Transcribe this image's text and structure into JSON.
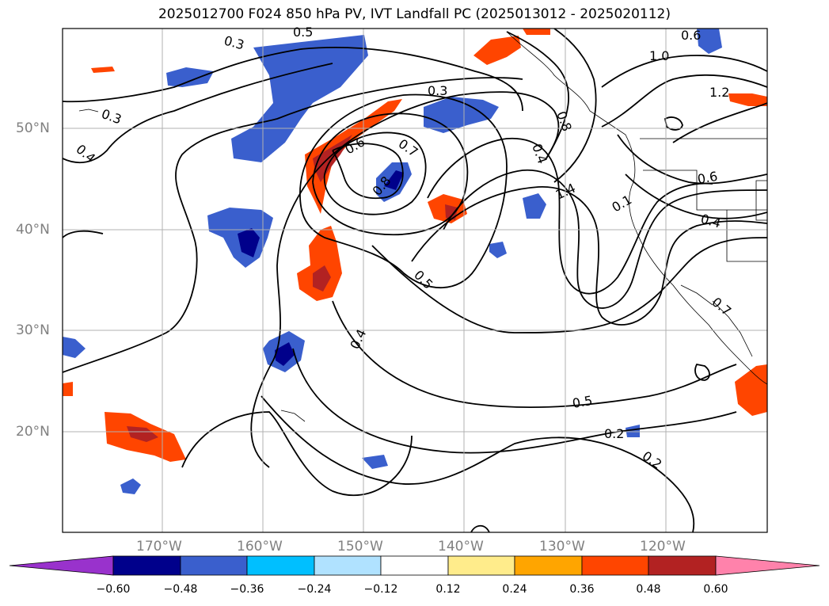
{
  "title": "2025012700 F024 850 hPa PV, IVT Landfall PC (2025013012 - 2025020112)",
  "lat_labels": [
    "50°N",
    "40°N",
    "30°N",
    "20°N"
  ],
  "lon_labels": [
    "170°W",
    "160°W",
    "150°W",
    "140°W",
    "130°W",
    "120°W"
  ],
  "colorbar": {
    "ticks": [
      "−0.60",
      "−0.48",
      "−0.36",
      "−0.24",
      "−0.12",
      "0.12",
      "0.24",
      "0.36",
      "0.48",
      "0.60"
    ],
    "colors": [
      "#9932cc",
      "#00008b",
      "#3a5fcd",
      "#00bfff",
      "#b0e2ff",
      "#ffffff",
      "#ffec8b",
      "#ffa500",
      "#ff4500",
      "#b22222",
      "#ff82ab"
    ]
  },
  "contour_labels": [
    "0.3",
    "0.5",
    "0.6",
    "0.3",
    "1.0",
    "0.3",
    "1.2",
    "0.4",
    "0.8",
    "0.6",
    "0.7",
    "0.4",
    "1.4",
    "0.6",
    "0.1",
    "0.8",
    "0.4",
    "0.5",
    "0.7",
    "0.4",
    "0.5",
    "0.2",
    "0.2"
  ],
  "colors": {
    "positive": "#ff4500",
    "positive_dark": "#b22222",
    "negative": "#3a5fcd",
    "negative_dark": "#00008b",
    "grid": "#b0b0b0",
    "axis_label": "#808080"
  }
}
